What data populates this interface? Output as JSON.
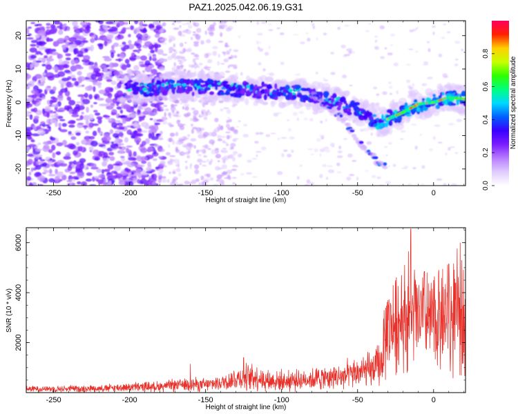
{
  "title": "PAZ1.2025.042.06.19.G31",
  "chart_data": [
    {
      "type": "heatmap",
      "xlabel": "Height of straight line (km)",
      "ylabel": "Frequency (Hz)",
      "xlim": [
        -268,
        21
      ],
      "ylim": [
        -25,
        24.5
      ],
      "xticks": [
        -250,
        -200,
        -150,
        -100,
        -50,
        0
      ],
      "yticks": [
        -20,
        -10,
        0,
        10,
        20
      ],
      "grid": false,
      "colorbar": {
        "label": "Normalized spectral amplitude",
        "range": [
          0,
          1
        ],
        "ticks": [
          "0.0",
          "0.2",
          "0.4",
          "0.6",
          "0.8"
        ],
        "colors": [
          "#ffffff",
          "#e0ccff",
          "#b77cff",
          "#7a1cff",
          "#3a00ff",
          "#0060ff",
          "#00d8ff",
          "#00ff80",
          "#30ff00",
          "#c8ff00",
          "#ffd000",
          "#ff2000",
          "#ff0060"
        ]
      },
      "ridge": [
        {
          "x": -200,
          "y": 4.5
        },
        {
          "x": -190,
          "y": 4.0
        },
        {
          "x": -180,
          "y": 4.5
        },
        {
          "x": -170,
          "y": 5.0
        },
        {
          "x": -160,
          "y": 4.5
        },
        {
          "x": -150,
          "y": 4.5
        },
        {
          "x": -140,
          "y": 4.5
        },
        {
          "x": -130,
          "y": 4.0
        },
        {
          "x": -120,
          "y": 3.5
        },
        {
          "x": -110,
          "y": 3.5
        },
        {
          "x": -100,
          "y": 3.0
        },
        {
          "x": -90,
          "y": 3.0
        },
        {
          "x": -80,
          "y": 2.0
        },
        {
          "x": -70,
          "y": 1.0
        },
        {
          "x": -60,
          "y": -0.5
        },
        {
          "x": -50,
          "y": -2.5
        },
        {
          "x": -40,
          "y": -5.0
        },
        {
          "x": -35,
          "y": -6.0
        },
        {
          "x": -30,
          "y": -5.0
        },
        {
          "x": -20,
          "y": -3.0
        },
        {
          "x": -10,
          "y": -0.5
        },
        {
          "x": 0,
          "y": 0.0
        },
        {
          "x": 10,
          "y": 1.5
        },
        {
          "x": 20,
          "y": 1.0
        }
      ],
      "branch": [
        {
          "x": -80,
          "y": 2.5
        },
        {
          "x": -70,
          "y": -1.0
        },
        {
          "x": -60,
          "y": -5.0
        },
        {
          "x": -50,
          "y": -11.5
        },
        {
          "x": -40,
          "y": -16.5
        },
        {
          "x": -31,
          "y": -19.5
        }
      ]
    },
    {
      "type": "line",
      "xlabel": "Height of straight line (km)",
      "ylabel": "SNR (10 * v/v)",
      "xlim": [
        -268,
        21
      ],
      "ylim": [
        0,
        6600
      ],
      "xticks": [
        -250,
        -200,
        -150,
        -100,
        -50,
        0
      ],
      "yticks": [
        2000,
        4000,
        6000
      ],
      "grid": false,
      "color": "#e8312a",
      "profile": [
        {
          "x": -268,
          "y": 150
        },
        {
          "x": -250,
          "y": 150
        },
        {
          "x": -220,
          "y": 170
        },
        {
          "x": -200,
          "y": 220
        },
        {
          "x": -180,
          "y": 250
        },
        {
          "x": -160,
          "y": 350
        },
        {
          "x": -150,
          "y": 300
        },
        {
          "x": -140,
          "y": 400
        },
        {
          "x": -130,
          "y": 550
        },
        {
          "x": -120,
          "y": 650
        },
        {
          "x": -110,
          "y": 500
        },
        {
          "x": -100,
          "y": 450
        },
        {
          "x": -90,
          "y": 500
        },
        {
          "x": -80,
          "y": 550
        },
        {
          "x": -70,
          "y": 600
        },
        {
          "x": -60,
          "y": 650
        },
        {
          "x": -50,
          "y": 800
        },
        {
          "x": -40,
          "y": 900
        },
        {
          "x": -35,
          "y": 1100
        },
        {
          "x": -30,
          "y": 2600
        },
        {
          "x": -25,
          "y": 2800
        },
        {
          "x": -20,
          "y": 3000
        },
        {
          "x": -15,
          "y": 3200
        },
        {
          "x": -10,
          "y": 3000
        },
        {
          "x": -5,
          "y": 2800
        },
        {
          "x": 0,
          "y": 2950
        },
        {
          "x": 5,
          "y": 3000
        },
        {
          "x": 10,
          "y": 2900
        },
        {
          "x": 15,
          "y": 3100
        },
        {
          "x": 21,
          "y": 3300
        }
      ],
      "spikes": [
        {
          "x": -160,
          "y": 1150
        },
        {
          "x": -125,
          "y": 1400
        },
        {
          "x": -100,
          "y": 950
        },
        {
          "x": -30,
          "y": 3700
        },
        {
          "x": -25,
          "y": 4500
        },
        {
          "x": -21,
          "y": 4700
        },
        {
          "x": -15,
          "y": 6550
        },
        {
          "x": -6,
          "y": 4850
        },
        {
          "x": 10,
          "y": 5150
        },
        {
          "x": 11,
          "y": 850
        },
        {
          "x": 20,
          "y": 3500
        }
      ]
    }
  ]
}
